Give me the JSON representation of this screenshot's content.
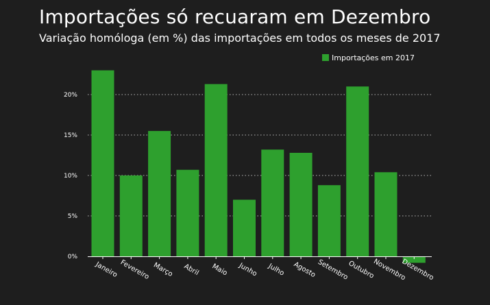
{
  "chart_data": {
    "type": "bar",
    "title": "Importações só recuaram em Dezembro",
    "subtitle": "Variação homóloga (em %) das importações em todos os meses de 2017",
    "categories": [
      "Janeiro",
      "Fevereiro",
      "Março",
      "Abril",
      "Maio",
      "Junho",
      "Julho",
      "Agosto",
      "Setembro",
      "Outubro",
      "Novembro",
      "Dezembro"
    ],
    "series": [
      {
        "name": "Importações em 2017",
        "values": [
          23.0,
          10.0,
          15.5,
          10.7,
          21.3,
          7.0,
          13.2,
          12.8,
          8.8,
          21.0,
          10.4,
          -0.8
        ]
      }
    ],
    "xlabel": "",
    "ylabel": "",
    "ylim": [
      -1,
      25
    ],
    "yticks": [
      0,
      5,
      10,
      15,
      20
    ],
    "ytick_labels": [
      "0%",
      "5%",
      "10%",
      "15%",
      "20%"
    ],
    "grid": "horizontal-dotted",
    "legend_position": "top-right",
    "colors": {
      "bar": "#2ea02e",
      "background": "#1e1e1e",
      "text": "#ffffff",
      "grid": "#bbbbbb"
    }
  }
}
